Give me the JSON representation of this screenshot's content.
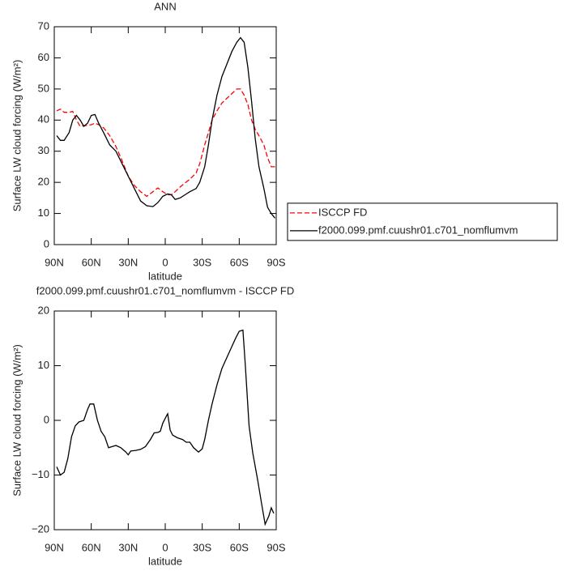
{
  "chart_data": [
    {
      "type": "line",
      "title": "ANN",
      "xlabel": "latitude",
      "ylabel": "Surface LW cloud forcing (W/m²)",
      "x": [
        88,
        85,
        82,
        78,
        75,
        72,
        69,
        66,
        63,
        60,
        57,
        54,
        50,
        45,
        40,
        35,
        30,
        25,
        20,
        15,
        10,
        6,
        2,
        -2,
        -5,
        -8,
        -12,
        -16,
        -20,
        -25,
        -28,
        -32,
        -35,
        -38,
        -42,
        -46,
        -50,
        -54,
        -58,
        -61,
        -64,
        -67,
        -70,
        -73,
        -76,
        -80,
        -83,
        -86,
        -89
      ],
      "series": [
        {
          "name": "ISCCP FD",
          "color": "#ff0000",
          "linestyle": "dashed",
          "values": [
            43,
            43.5,
            42.5,
            42.5,
            42.8,
            40,
            38,
            38.2,
            38.3,
            38.5,
            39,
            38.5,
            37.5,
            35,
            31.5,
            27,
            22,
            19,
            17,
            15.5,
            17,
            18.2,
            17,
            16,
            16,
            17,
            18.5,
            19.8,
            21,
            23,
            26,
            32,
            36,
            40,
            43,
            45.5,
            47,
            48.5,
            50,
            50,
            48,
            45,
            40,
            37,
            35,
            32,
            28,
            25,
            25
          ]
        },
        {
          "name": "f2000.099.pmf.cuushr01.c701_nomflumvm",
          "color": "#000000",
          "linestyle": "solid",
          "values": [
            35,
            33.5,
            33.5,
            36,
            40,
            41.5,
            40,
            38,
            39,
            41.5,
            41.8,
            39,
            36,
            32,
            30,
            26,
            22,
            18,
            14,
            12.5,
            12.2,
            13.5,
            15.5,
            16.3,
            16,
            14.5,
            15,
            16,
            17,
            18,
            20,
            25,
            32,
            40,
            48,
            54,
            58,
            62,
            65,
            66.5,
            65,
            57,
            46,
            34,
            25,
            18,
            12,
            10,
            8.5
          ]
        }
      ],
      "xlim": [
        90,
        -90
      ],
      "xticks": [
        {
          "value": 90,
          "label": "90N"
        },
        {
          "value": 60,
          "label": "60N"
        },
        {
          "value": 30,
          "label": "30N"
        },
        0,
        {
          "value": -30,
          "label": "30S"
        },
        {
          "value": -60,
          "label": "60S"
        },
        {
          "value": -90,
          "label": "90S"
        }
      ],
      "ylim": [
        0,
        70
      ],
      "yticks": [
        0,
        10,
        20,
        30,
        40,
        50,
        60,
        70
      ],
      "legend": "right"
    },
    {
      "type": "line",
      "title": "f2000.099.pmf.cuushr01.c701_nomflumvm - ISCCP FD",
      "xlabel": "latitude",
      "ylabel": "Surface LW cloud forcing (W/m²)",
      "x": [
        88,
        85,
        82,
        79,
        76,
        73,
        70,
        66,
        63,
        61,
        58,
        55,
        52,
        49,
        46,
        43,
        40,
        36,
        32,
        30,
        28,
        24,
        20,
        16,
        12,
        9,
        6,
        4,
        2,
        -1,
        -2,
        -4,
        -6,
        -10,
        -14,
        -17,
        -20,
        -23,
        -27,
        -30,
        -32,
        -35,
        -38,
        -42,
        -46,
        -50,
        -54,
        -57,
        -60,
        -63,
        -65,
        -68,
        -71,
        -75,
        -78,
        -81,
        -84,
        -86,
        -88
      ],
      "series": [
        {
          "name": "f2000.099.pmf.cuushr01.c701_nomflumvm - ISCCP FD",
          "color": "#000000",
          "linestyle": "solid",
          "values": [
            -8.5,
            -10,
            -9.5,
            -7,
            -3,
            -1,
            -0.3,
            0,
            2,
            3,
            3,
            0,
            -2,
            -3,
            -5,
            -4.8,
            -4.6,
            -5,
            -5.8,
            -6.3,
            -5.6,
            -5.5,
            -5.3,
            -4.8,
            -3.5,
            -2.3,
            -2.2,
            -2,
            -0.5,
            0.8,
            1.2,
            -1.8,
            -2.7,
            -3.2,
            -3.5,
            -4,
            -4,
            -5,
            -5.8,
            -5.2,
            -3.5,
            0,
            3,
            6.5,
            9.5,
            11.5,
            13.5,
            15,
            16.3,
            16.5,
            10,
            -1,
            -6,
            -11,
            -15,
            -19,
            -17.5,
            -16,
            -17
          ]
        }
      ],
      "xlim": [
        90,
        -90
      ],
      "xticks": [
        {
          "value": 90,
          "label": "90N"
        },
        {
          "value": 60,
          "label": "60N"
        },
        {
          "value": 30,
          "label": "30N"
        },
        0,
        {
          "value": -30,
          "label": "30S"
        },
        {
          "value": -60,
          "label": "60S"
        },
        {
          "value": -90,
          "label": "90S"
        }
      ],
      "ylim": [
        -20,
        20
      ],
      "yticks": [
        {
          "value": -20,
          "label": "−20"
        },
        {
          "value": -10,
          "label": "−10"
        },
        0,
        10,
        20
      ]
    }
  ]
}
